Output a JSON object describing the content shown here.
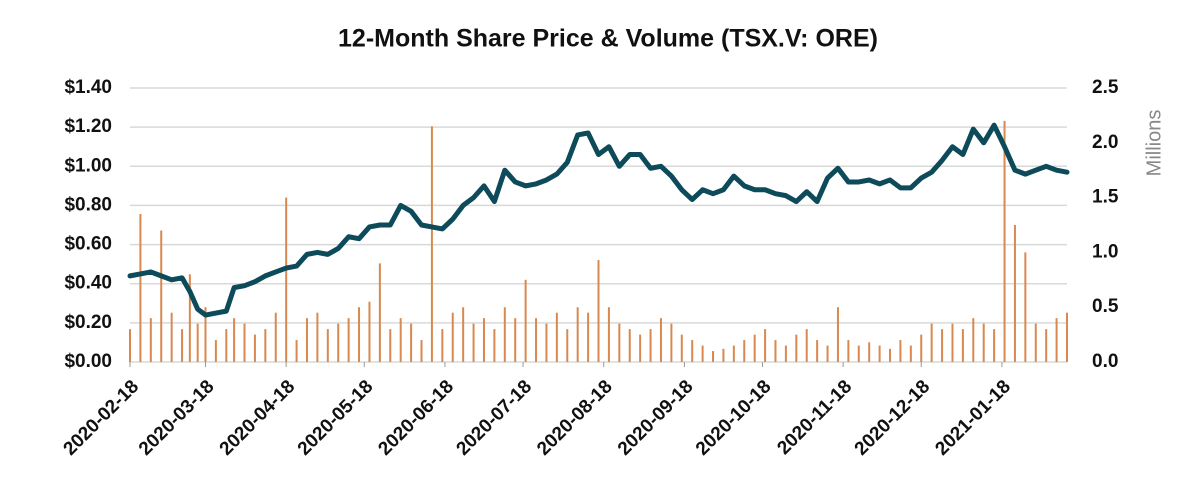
{
  "chart_data": {
    "type": "line-bar",
    "title": "12-Month Share Price & Volume (TSX.V: ORE)",
    "y2_label": "Millions",
    "x": [
      "2020-02-18",
      "2020-02-22",
      "2020-02-26",
      "2020-03-01",
      "2020-03-05",
      "2020-03-09",
      "2020-03-12",
      "2020-03-15",
      "2020-03-18",
      "2020-03-22",
      "2020-03-26",
      "2020-03-29",
      "2020-04-02",
      "2020-04-06",
      "2020-04-10",
      "2020-04-14",
      "2020-04-18",
      "2020-04-22",
      "2020-04-26",
      "2020-04-30",
      "2020-05-04",
      "2020-05-08",
      "2020-05-12",
      "2020-05-16",
      "2020-05-20",
      "2020-05-24",
      "2020-05-28",
      "2020-06-01",
      "2020-06-05",
      "2020-06-09",
      "2020-06-13",
      "2020-06-17",
      "2020-06-21",
      "2020-06-25",
      "2020-06-29",
      "2020-07-03",
      "2020-07-07",
      "2020-07-11",
      "2020-07-15",
      "2020-07-19",
      "2020-07-23",
      "2020-07-27",
      "2020-07-31",
      "2020-08-04",
      "2020-08-08",
      "2020-08-12",
      "2020-08-16",
      "2020-08-20",
      "2020-08-24",
      "2020-08-28",
      "2020-09-01",
      "2020-09-05",
      "2020-09-09",
      "2020-09-13",
      "2020-09-17",
      "2020-09-21",
      "2020-09-25",
      "2020-09-29",
      "2020-10-03",
      "2020-10-07",
      "2020-10-11",
      "2020-10-15",
      "2020-10-19",
      "2020-10-23",
      "2020-10-27",
      "2020-10-31",
      "2020-11-04",
      "2020-11-08",
      "2020-11-12",
      "2020-11-16",
      "2020-11-20",
      "2020-11-24",
      "2020-11-28",
      "2020-12-02",
      "2020-12-06",
      "2020-12-10",
      "2020-12-14",
      "2020-12-18",
      "2020-12-22",
      "2020-12-26",
      "2020-12-30",
      "2021-01-03",
      "2021-01-07",
      "2021-01-11",
      "2021-01-15",
      "2021-01-19",
      "2021-01-23",
      "2021-01-27",
      "2021-01-31",
      "2021-02-04",
      "2021-02-08",
      "2021-02-12"
    ],
    "series": [
      {
        "type": "bar",
        "axis": "y2",
        "color": "#d9894f",
        "values": [
          0.3,
          1.35,
          0.4,
          1.2,
          0.45,
          0.3,
          0.8,
          0.35,
          0.5,
          0.2,
          0.3,
          0.4,
          0.35,
          0.25,
          0.3,
          0.45,
          1.5,
          0.2,
          0.4,
          0.45,
          0.3,
          0.35,
          0.4,
          0.5,
          0.55,
          0.9,
          0.3,
          0.4,
          0.35,
          0.2,
          2.15,
          0.3,
          0.45,
          0.5,
          0.35,
          0.4,
          0.3,
          0.5,
          0.4,
          0.75,
          0.4,
          0.35,
          0.45,
          0.3,
          0.5,
          0.45,
          0.93,
          0.5,
          0.35,
          0.3,
          0.25,
          0.3,
          0.4,
          0.35,
          0.25,
          0.2,
          0.15,
          0.1,
          0.12,
          0.15,
          0.2,
          0.25,
          0.3,
          0.2,
          0.15,
          0.25,
          0.3,
          0.2,
          0.15,
          0.5,
          0.2,
          0.15,
          0.18,
          0.15,
          0.12,
          0.2,
          0.15,
          0.25,
          0.35,
          0.3,
          0.35,
          0.3,
          0.4,
          0.35,
          0.3,
          2.2,
          1.25,
          1.0,
          0.35,
          0.3,
          0.4,
          0.45
        ]
      },
      {
        "type": "line",
        "color": "#0d4a5a",
        "values": [
          0.44,
          0.45,
          0.46,
          0.44,
          0.42,
          0.43,
          0.36,
          0.27,
          0.24,
          0.25,
          0.26,
          0.38,
          0.39,
          0.41,
          0.44,
          0.46,
          0.48,
          0.49,
          0.55,
          0.56,
          0.55,
          0.58,
          0.64,
          0.63,
          0.69,
          0.7,
          0.7,
          0.8,
          0.77,
          0.7,
          0.69,
          0.68,
          0.73,
          0.8,
          0.84,
          0.9,
          0.82,
          0.98,
          0.92,
          0.9,
          0.91,
          0.93,
          0.96,
          1.02,
          1.16,
          1.17,
          1.06,
          1.1,
          1.0,
          1.06,
          1.06,
          0.99,
          1.0,
          0.95,
          0.88,
          0.83,
          0.88,
          0.86,
          0.88,
          0.95,
          0.9,
          0.88,
          0.88,
          0.86,
          0.85,
          0.82,
          0.87,
          0.82,
          0.94,
          0.99,
          0.92,
          0.92,
          0.93,
          0.91,
          0.93,
          0.89,
          0.89,
          0.94,
          0.97,
          1.03,
          1.1,
          1.06,
          1.19,
          1.12,
          1.21,
          1.1,
          0.98,
          0.96,
          0.98,
          1.0,
          0.98,
          0.97
        ]
      }
    ],
    "xlim": [
      "2020-02-18",
      "2021-02-12"
    ],
    "xticks": [
      "2020-02-18",
      "2020-03-18",
      "2020-04-18",
      "2020-05-18",
      "2020-06-18",
      "2020-07-18",
      "2020-08-18",
      "2020-09-18",
      "2020-10-18",
      "2020-11-18",
      "2020-12-18",
      "2021-01-18"
    ],
    "ylim": [
      0,
      1.4
    ],
    "yticks": [
      {
        "value": 0,
        "label": "$0.00"
      },
      {
        "value": 0.2,
        "label": "$0.20"
      },
      {
        "value": 0.4,
        "label": "$0.40"
      },
      {
        "value": 0.6,
        "label": "$0.60"
      },
      {
        "value": 0.8,
        "label": "$0.80"
      },
      {
        "value": 1.0,
        "label": "$1.00"
      },
      {
        "value": 1.2,
        "label": "$1.20"
      },
      {
        "value": 1.4,
        "label": "$1.40"
      }
    ],
    "y2lim": [
      0,
      2.5
    ],
    "y2ticks": [
      {
        "value": 0,
        "label": "0.0"
      },
      0.5,
      {
        "value": 1,
        "label": "1.0"
      },
      1.5,
      {
        "value": 2,
        "label": "2.0"
      },
      2.5
    ],
    "grid": true
  }
}
